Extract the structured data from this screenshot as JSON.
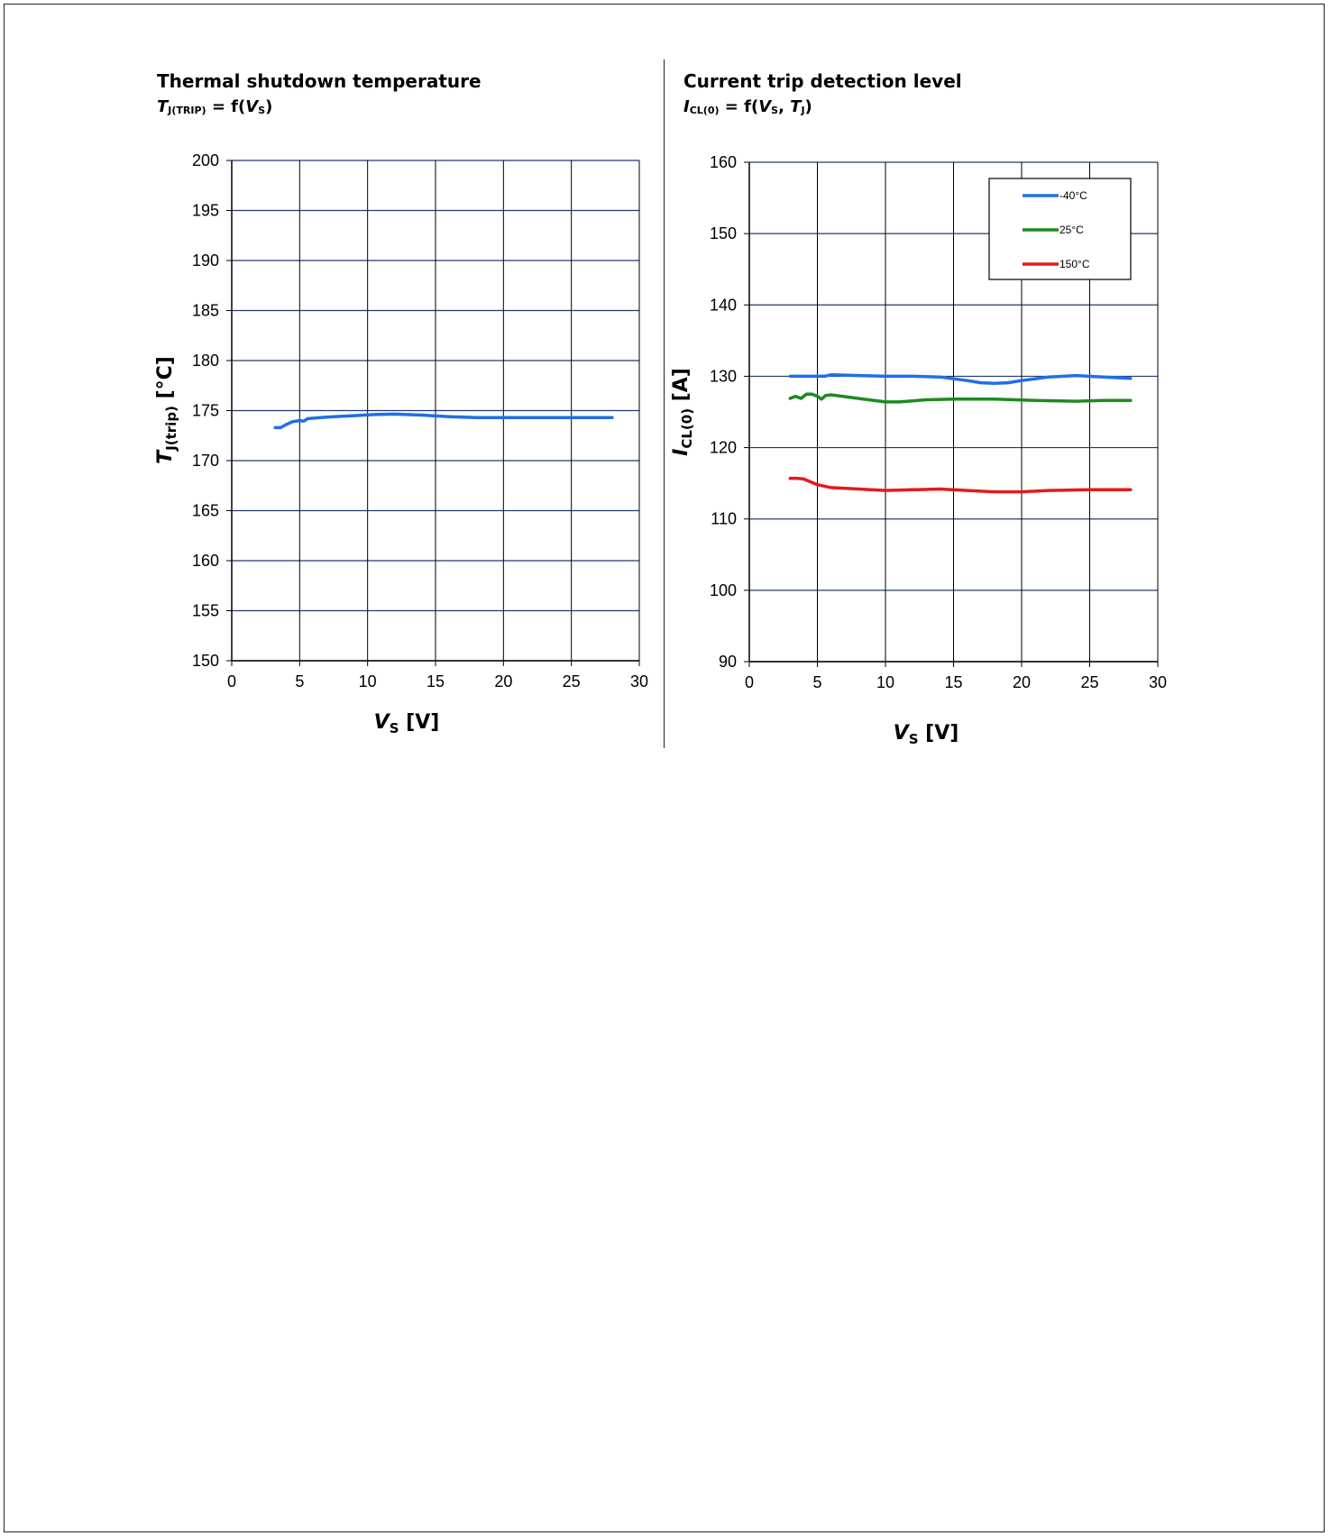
{
  "panels": {
    "left": {
      "title": "Thermal shutdown temperature",
      "sub_var": "T",
      "sub_sub": "J(TRIP)",
      "sub_eq": " = f(",
      "sub_arg": "V",
      "sub_arg_sub": "S",
      "sub_close": ")"
    },
    "right": {
      "title": "Current trip detection level",
      "sub_var": "I",
      "sub_sub": "CL(0)",
      "sub_eq": " = f(",
      "sub_arg1": "V",
      "sub_arg1_sub": "S",
      "sub_sep": ", ",
      "sub_arg2": "T",
      "sub_arg2_sub": "J",
      "sub_close": ")"
    }
  },
  "chart_data": [
    {
      "type": "line",
      "title": "",
      "xlabel": {
        "var": "V",
        "sub": "S",
        "unit": " [V]"
      },
      "ylabel": {
        "var": "T",
        "sub": "J(trip)",
        "unit": " [°C]"
      },
      "xlim": [
        0,
        30
      ],
      "ylim": [
        150,
        200
      ],
      "xticks": [
        0,
        5,
        10,
        15,
        20,
        25,
        30
      ],
      "yticks": [
        150,
        155,
        160,
        165,
        170,
        175,
        180,
        185,
        190,
        195,
        200
      ],
      "grid": true,
      "series": [
        {
          "color": "#1f6fe8",
          "x": [
            3.2,
            3.6,
            4.0,
            4.5,
            5.0,
            5.3,
            5.6,
            7,
            9,
            10.5,
            12,
            14,
            16,
            18,
            20,
            22,
            25,
            28
          ],
          "y": [
            173.3,
            173.3,
            173.6,
            173.9,
            174.0,
            173.95,
            174.2,
            174.35,
            174.5,
            174.6,
            174.65,
            174.55,
            174.4,
            174.3,
            174.3,
            174.3,
            174.3,
            174.3
          ]
        }
      ]
    },
    {
      "type": "line",
      "title": "",
      "xlabel": {
        "var": "V",
        "sub": "S",
        "unit": " [V]"
      },
      "ylabel": {
        "var": "I",
        "sub": "CL(0)",
        "unit": " [A]"
      },
      "xlim": [
        0,
        30
      ],
      "ylim": [
        90,
        160
      ],
      "xticks": [
        0,
        5,
        10,
        15,
        20,
        25,
        30
      ],
      "yticks": [
        90,
        100,
        110,
        120,
        130,
        140,
        150,
        160
      ],
      "grid": true,
      "legend": "top-right",
      "series": [
        {
          "name": "-40°C",
          "color": "#1f6fe8",
          "x": [
            3.0,
            4,
            5,
            5.5,
            6,
            8,
            10,
            12,
            14,
            16,
            17,
            18,
            19,
            20,
            22,
            24,
            26,
            28
          ],
          "y": [
            130.0,
            130.0,
            130.0,
            130.0,
            130.2,
            130.1,
            130.0,
            130.0,
            129.9,
            129.4,
            129.1,
            129.0,
            129.1,
            129.4,
            129.9,
            130.1,
            129.9,
            129.7
          ]
        },
        {
          "name": "25°C",
          "color": "#1e8a1e",
          "x": [
            3.0,
            3.4,
            3.8,
            4.2,
            4.6,
            5.0,
            5.3,
            5.6,
            6.0,
            8,
            10,
            11,
            13,
            15,
            18,
            21,
            24,
            26,
            28
          ],
          "y": [
            126.9,
            127.2,
            126.9,
            127.5,
            127.5,
            127.2,
            126.8,
            127.3,
            127.4,
            126.9,
            126.4,
            126.4,
            126.7,
            126.8,
            126.8,
            126.6,
            126.5,
            126.6,
            126.6
          ]
        },
        {
          "name": "150°C",
          "color": "#e41a1a",
          "x": [
            3.0,
            3.5,
            4.0,
            4.5,
            5.0,
            5.5,
            6.0,
            8,
            10,
            12,
            14,
            16,
            18,
            20,
            22,
            25,
            28
          ],
          "y": [
            115.7,
            115.7,
            115.6,
            115.2,
            114.8,
            114.6,
            114.4,
            114.2,
            114.0,
            114.1,
            114.2,
            114.0,
            113.8,
            113.8,
            114.0,
            114.1,
            114.1
          ]
        }
      ]
    }
  ]
}
